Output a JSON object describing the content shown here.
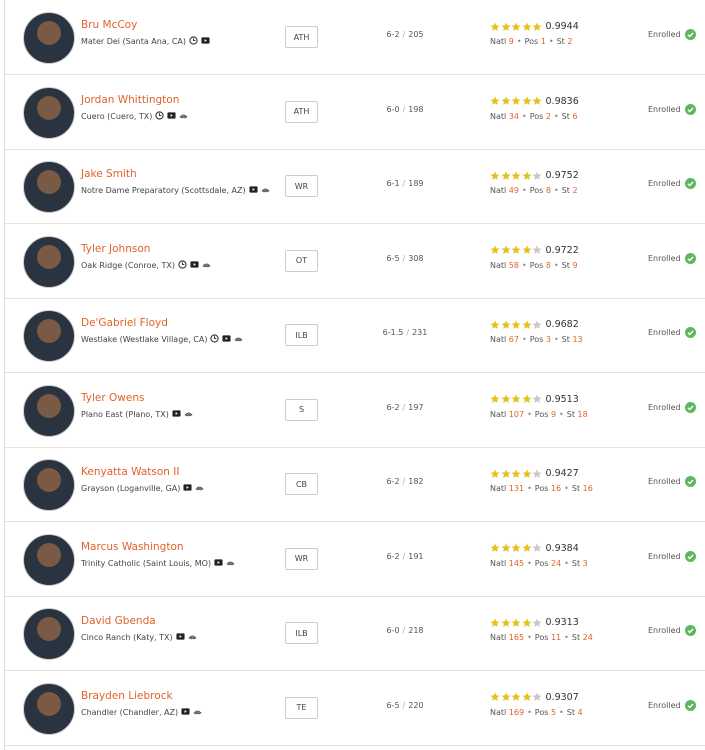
{
  "labels": {
    "natl": "Natl",
    "pos": "Pos",
    "st": "St",
    "separator": "/",
    "dot": "•"
  },
  "max_stars": 5,
  "rows": [
    {
      "name": "Bru McCoy",
      "hometown": "Mater Dei (Santa Ana, CA)",
      "icons": [
        "clock",
        "video"
      ],
      "position": "ATH",
      "height": "6-2",
      "weight": 205,
      "stars": 5,
      "rating": 0.9944,
      "natl": 9,
      "pos": 1,
      "st": 2,
      "status": "Enrolled"
    },
    {
      "name": "Jordan Whittington",
      "hometown": "Cuero (Cuero, TX)",
      "icons": [
        "clock",
        "video",
        "camera"
      ],
      "position": "ATH",
      "height": "6-0",
      "weight": 198,
      "stars": 5,
      "rating": 0.9836,
      "natl": 34,
      "pos": 2,
      "st": 6,
      "status": "Enrolled"
    },
    {
      "name": "Jake Smith",
      "hometown": "Notre Dame Preparatory (Scottsdale, AZ)",
      "icons": [
        "video",
        "camera"
      ],
      "position": "WR",
      "height": "6-1",
      "weight": 189,
      "stars": 4,
      "rating": 0.9752,
      "natl": 49,
      "pos": 8,
      "st": 2,
      "status": "Enrolled"
    },
    {
      "name": "Tyler Johnson",
      "hometown": "Oak Ridge (Conroe, TX)",
      "icons": [
        "clock",
        "video",
        "camera"
      ],
      "position": "OT",
      "height": "6-5",
      "weight": 308,
      "stars": 4,
      "rating": 0.9722,
      "natl": 58,
      "pos": 8,
      "st": 9,
      "status": "Enrolled"
    },
    {
      "name": "De'Gabriel Floyd",
      "hometown": "Westlake (Westlake Village, CA)",
      "icons": [
        "clock",
        "video",
        "camera"
      ],
      "position": "ILB",
      "height": "6-1.5",
      "weight": 231,
      "stars": 4,
      "rating": 0.9682,
      "natl": 67,
      "pos": 3,
      "st": 13,
      "status": "Enrolled"
    },
    {
      "name": "Tyler Owens",
      "hometown": "Plano East (Plano, TX)",
      "icons": [
        "video",
        "camera"
      ],
      "position": "S",
      "height": "6-2",
      "weight": 197,
      "stars": 4,
      "rating": 0.9513,
      "natl": 107,
      "pos": 9,
      "st": 18,
      "status": "Enrolled"
    },
    {
      "name": "Kenyatta Watson II",
      "hometown": "Grayson (Loganville, GA)",
      "icons": [
        "video",
        "camera"
      ],
      "position": "CB",
      "height": "6-2",
      "weight": 182,
      "stars": 4,
      "rating": 0.9427,
      "natl": 131,
      "pos": 16,
      "st": 16,
      "status": "Enrolled"
    },
    {
      "name": "Marcus Washington",
      "hometown": "Trinity Catholic (Saint Louis, MO)",
      "icons": [
        "video",
        "camera"
      ],
      "position": "WR",
      "height": "6-2",
      "weight": 191,
      "stars": 4,
      "rating": 0.9384,
      "natl": 145,
      "pos": 24,
      "st": 3,
      "status": "Enrolled"
    },
    {
      "name": "David Gbenda",
      "hometown": "Cinco Ranch (Katy, TX)",
      "icons": [
        "video",
        "camera"
      ],
      "position": "ILB",
      "height": "6-0",
      "weight": 218,
      "stars": 4,
      "rating": 0.9313,
      "natl": 165,
      "pos": 11,
      "st": 24,
      "status": "Enrolled"
    },
    {
      "name": "Brayden Liebrock",
      "hometown": "Chandler (Chandler, AZ)",
      "icons": [
        "video",
        "camera"
      ],
      "position": "TE",
      "height": "6-5",
      "weight": 220,
      "stars": 4,
      "rating": 0.9307,
      "natl": 169,
      "pos": 5,
      "st": 4,
      "status": "Enrolled"
    }
  ]
}
